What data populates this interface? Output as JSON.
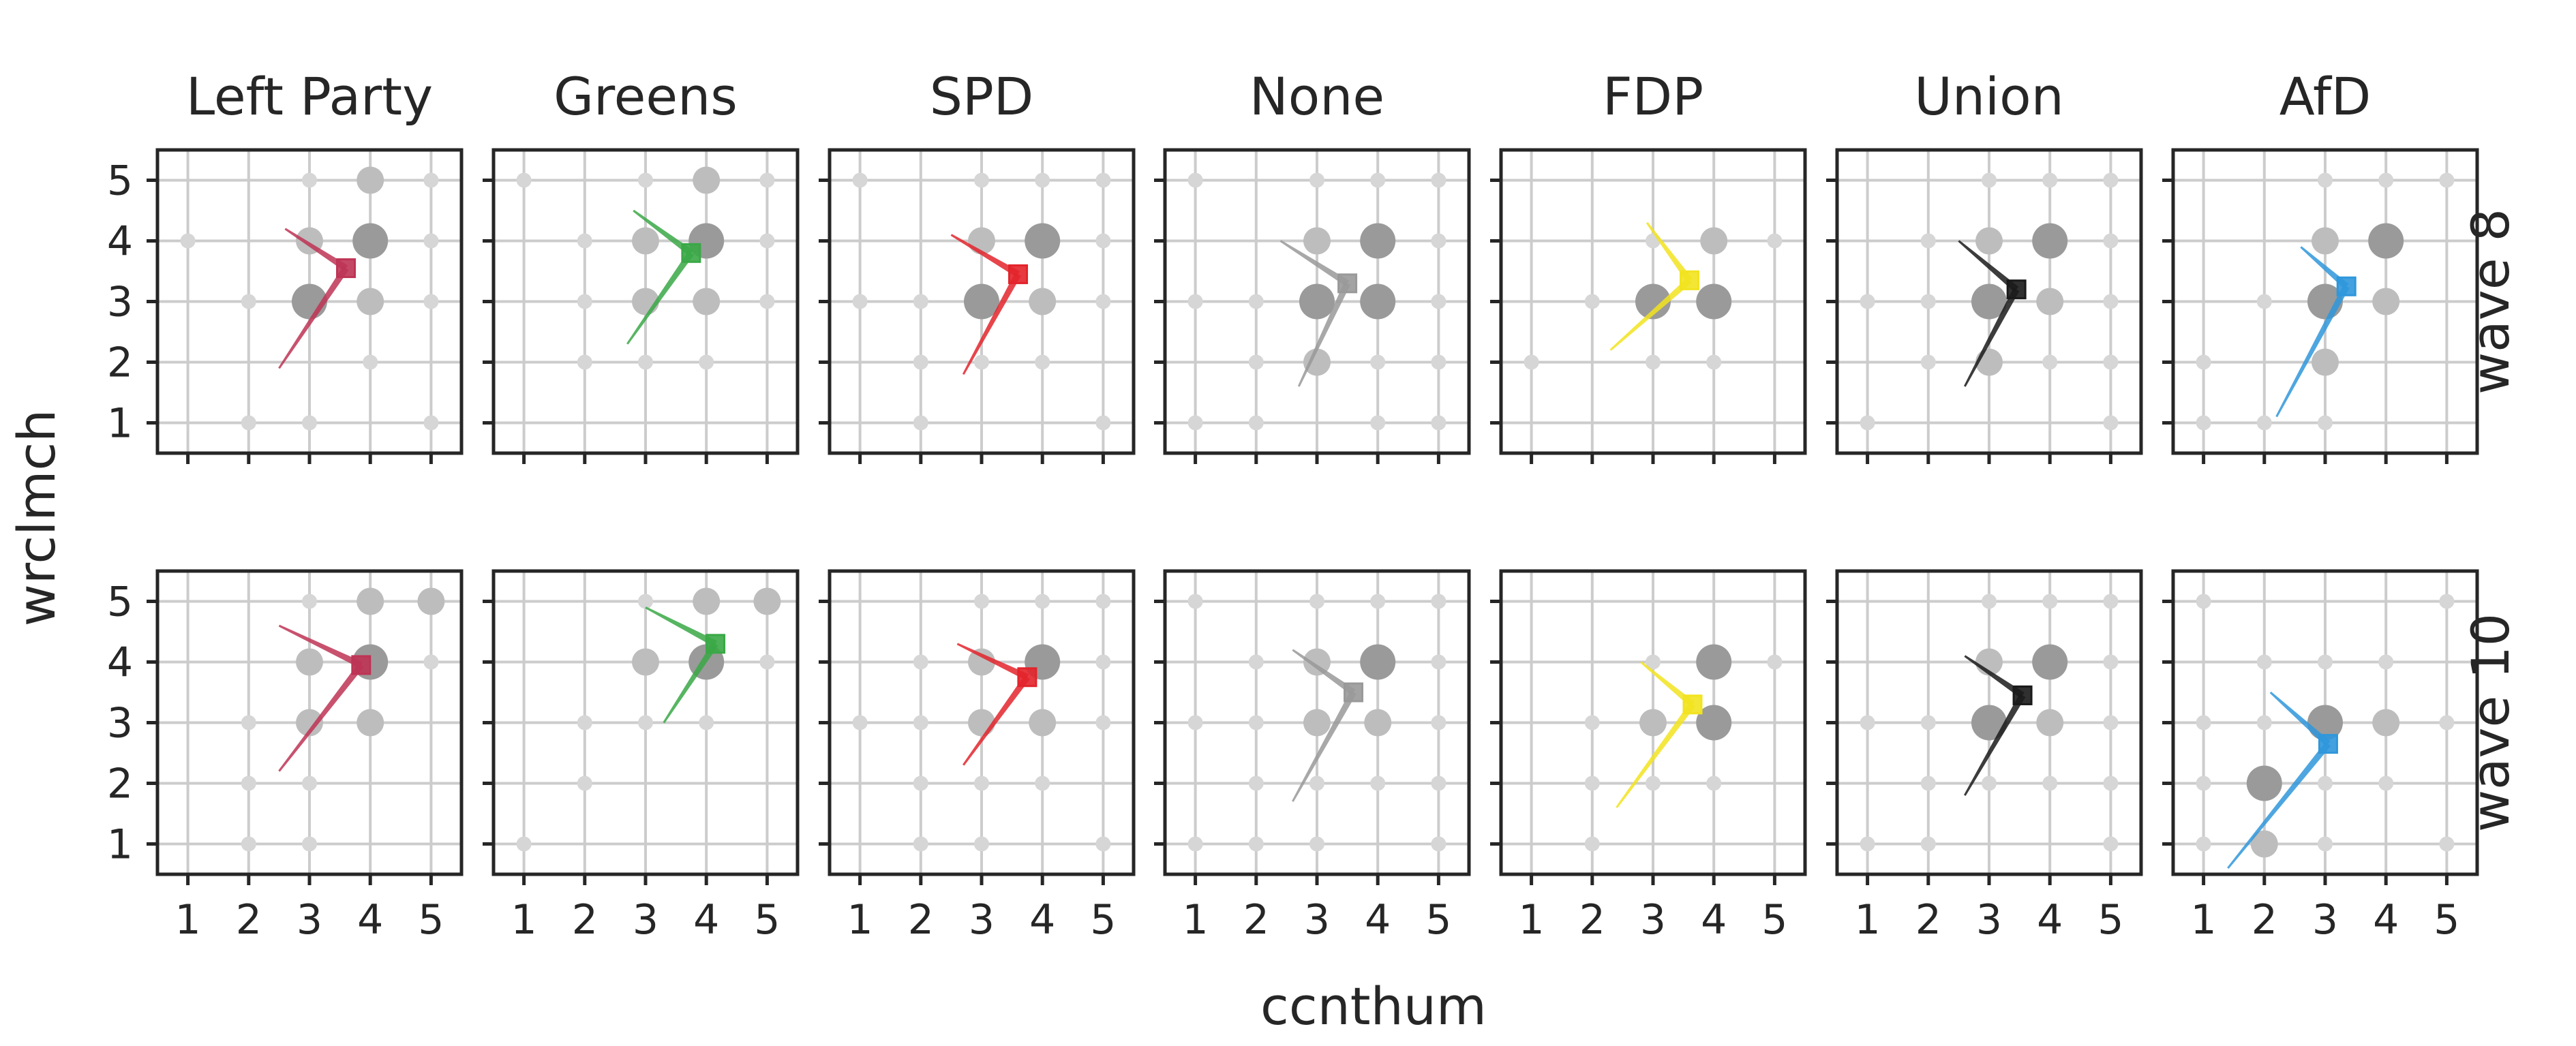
{
  "chart_data": {
    "type": "scatter",
    "xlabel": "ccnthum",
    "ylabel": "wrclmch",
    "xlim": [
      0.5,
      5.5
    ],
    "ylim": [
      0.5,
      5.5
    ],
    "xticks": [
      "1",
      "2",
      "3",
      "4",
      "5"
    ],
    "yticks": [
      "1",
      "2",
      "3",
      "4",
      "5"
    ],
    "grid": true,
    "columns": [
      "Left Party",
      "Greens",
      "SPD",
      "None",
      "FDP",
      "Union",
      "AfD"
    ],
    "rows": [
      "wave 8",
      "wave 10"
    ],
    "colors": {
      "Left Party": "#be3455",
      "Greens": "#3aa846",
      "SPD": "#e3242b",
      "None": "#999999",
      "FDP": "#f2e31f",
      "Union": "#1a1a1a",
      "AfD": "#2f97db"
    },
    "point_size_levels": [
      "small",
      "medium",
      "large"
    ],
    "panels": [
      {
        "row": "wave 8",
        "column": "Left Party",
        "points": [
          [
            1,
            4,
            1
          ],
          [
            2,
            1,
            1
          ],
          [
            2,
            3,
            1
          ],
          [
            3,
            1,
            1
          ],
          [
            3,
            4,
            2
          ],
          [
            3,
            5,
            1
          ],
          [
            3,
            3,
            3
          ],
          [
            4,
            2,
            1
          ],
          [
            4,
            3,
            2
          ],
          [
            4,
            4,
            3
          ],
          [
            4,
            5,
            2
          ],
          [
            5,
            1,
            1
          ],
          [
            5,
            3,
            1
          ],
          [
            5,
            4,
            1
          ],
          [
            5,
            5,
            1
          ]
        ],
        "mean": [
          3.6,
          3.55
        ],
        "arrow1_tip": [
          2.6,
          4.2
        ],
        "arrow2_tip": [
          2.5,
          1.9
        ]
      },
      {
        "row": "wave 8",
        "column": "Greens",
        "points": [
          [
            1,
            5,
            1
          ],
          [
            2,
            2,
            1
          ],
          [
            2,
            3,
            1
          ],
          [
            2,
            4,
            1
          ],
          [
            3,
            2,
            1
          ],
          [
            3,
            3,
            2
          ],
          [
            3,
            4,
            2
          ],
          [
            3,
            5,
            1
          ],
          [
            4,
            2,
            1
          ],
          [
            4,
            3,
            2
          ],
          [
            4,
            4,
            3
          ],
          [
            4,
            5,
            2
          ],
          [
            5,
            3,
            1
          ],
          [
            5,
            4,
            1
          ],
          [
            5,
            5,
            1
          ]
        ],
        "mean": [
          3.75,
          3.8
        ],
        "arrow1_tip": [
          2.8,
          4.5
        ],
        "arrow2_tip": [
          2.7,
          2.3
        ]
      },
      {
        "row": "wave 8",
        "column": "SPD",
        "points": [
          [
            1,
            3,
            1
          ],
          [
            1,
            5,
            1
          ],
          [
            2,
            1,
            1
          ],
          [
            2,
            2,
            1
          ],
          [
            2,
            3,
            1
          ],
          [
            3,
            2,
            1
          ],
          [
            3,
            3,
            3
          ],
          [
            3,
            4,
            2
          ],
          [
            3,
            5,
            1
          ],
          [
            4,
            2,
            1
          ],
          [
            4,
            3,
            2
          ],
          [
            4,
            4,
            3
          ],
          [
            4,
            5,
            1
          ],
          [
            5,
            1,
            1
          ],
          [
            5,
            3,
            1
          ],
          [
            5,
            4,
            1
          ],
          [
            5,
            5,
            1
          ]
        ],
        "mean": [
          3.6,
          3.45
        ],
        "arrow1_tip": [
          2.5,
          4.1
        ],
        "arrow2_tip": [
          2.7,
          1.8
        ]
      },
      {
        "row": "wave 8",
        "column": "None",
        "points": [
          [
            1,
            1,
            1
          ],
          [
            1,
            3,
            1
          ],
          [
            1,
            5,
            1
          ],
          [
            2,
            1,
            1
          ],
          [
            2,
            2,
            1
          ],
          [
            2,
            3,
            1
          ],
          [
            3,
            2,
            2
          ],
          [
            3,
            3,
            3
          ],
          [
            3,
            4,
            2
          ],
          [
            3,
            5,
            1
          ],
          [
            4,
            1,
            1
          ],
          [
            4,
            2,
            1
          ],
          [
            4,
            3,
            3
          ],
          [
            4,
            4,
            3
          ],
          [
            4,
            5,
            1
          ],
          [
            5,
            1,
            1
          ],
          [
            5,
            2,
            1
          ],
          [
            5,
            3,
            1
          ],
          [
            5,
            4,
            1
          ],
          [
            5,
            5,
            1
          ]
        ],
        "mean": [
          3.5,
          3.3
        ],
        "arrow1_tip": [
          2.4,
          4.0
        ],
        "arrow2_tip": [
          2.7,
          1.6
        ]
      },
      {
        "row": "wave 8",
        "column": "FDP",
        "points": [
          [
            1,
            2,
            1
          ],
          [
            2,
            3,
            1
          ],
          [
            3,
            2,
            1
          ],
          [
            3,
            3,
            3
          ],
          [
            3,
            4,
            1
          ],
          [
            4,
            2,
            1
          ],
          [
            4,
            3,
            3
          ],
          [
            4,
            4,
            2
          ],
          [
            5,
            4,
            1
          ]
        ],
        "mean": [
          3.6,
          3.35
        ],
        "arrow1_tip": [
          2.9,
          4.3
        ],
        "arrow2_tip": [
          2.3,
          2.2
        ]
      },
      {
        "row": "wave 8",
        "column": "Union",
        "points": [
          [
            1,
            1,
            1
          ],
          [
            1,
            3,
            1
          ],
          [
            2,
            2,
            1
          ],
          [
            2,
            3,
            1
          ],
          [
            2,
            4,
            1
          ],
          [
            3,
            2,
            2
          ],
          [
            3,
            3,
            3
          ],
          [
            3,
            4,
            2
          ],
          [
            3,
            5,
            1
          ],
          [
            4,
            2,
            1
          ],
          [
            4,
            3,
            2
          ],
          [
            4,
            4,
            3
          ],
          [
            4,
            5,
            1
          ],
          [
            5,
            1,
            1
          ],
          [
            5,
            2,
            1
          ],
          [
            5,
            3,
            1
          ],
          [
            5,
            4,
            1
          ],
          [
            5,
            5,
            1
          ]
        ],
        "mean": [
          3.45,
          3.2
        ],
        "arrow1_tip": [
          2.5,
          4.0
        ],
        "arrow2_tip": [
          2.6,
          1.6
        ]
      },
      {
        "row": "wave 8",
        "column": "AfD",
        "points": [
          [
            1,
            1,
            1
          ],
          [
            1,
            2,
            1
          ],
          [
            2,
            1,
            1
          ],
          [
            2,
            3,
            1
          ],
          [
            3,
            1,
            1
          ],
          [
            3,
            2,
            2
          ],
          [
            3,
            3,
            3
          ],
          [
            3,
            4,
            2
          ],
          [
            3,
            5,
            1
          ],
          [
            4,
            3,
            2
          ],
          [
            4,
            4,
            3
          ],
          [
            4,
            5,
            1
          ],
          [
            5,
            5,
            1
          ]
        ],
        "mean": [
          3.35,
          3.25
        ],
        "arrow1_tip": [
          2.6,
          3.9
        ],
        "arrow2_tip": [
          2.2,
          1.1
        ]
      },
      {
        "row": "wave 10",
        "column": "Left Party",
        "points": [
          [
            2,
            1,
            1
          ],
          [
            2,
            2,
            1
          ],
          [
            2,
            3,
            1
          ],
          [
            3,
            1,
            1
          ],
          [
            3,
            2,
            1
          ],
          [
            3,
            3,
            2
          ],
          [
            3,
            4,
            2
          ],
          [
            3,
            5,
            1
          ],
          [
            4,
            3,
            2
          ],
          [
            4,
            4,
            3
          ],
          [
            4,
            5,
            2
          ],
          [
            5,
            4,
            1
          ],
          [
            5,
            5,
            2
          ]
        ],
        "mean": [
          3.85,
          3.95
        ],
        "arrow1_tip": [
          2.5,
          4.6
        ],
        "arrow2_tip": [
          2.5,
          2.2
        ]
      },
      {
        "row": "wave 10",
        "column": "Greens",
        "points": [
          [
            1,
            1,
            1
          ],
          [
            2,
            2,
            1
          ],
          [
            2,
            3,
            1
          ],
          [
            3,
            3,
            1
          ],
          [
            3,
            4,
            2
          ],
          [
            3,
            5,
            1
          ],
          [
            4,
            3,
            1
          ],
          [
            4,
            4,
            3
          ],
          [
            4,
            5,
            2
          ],
          [
            5,
            4,
            1
          ],
          [
            5,
            5,
            2
          ]
        ],
        "mean": [
          4.15,
          4.3
        ],
        "arrow1_tip": [
          3.0,
          4.9
        ],
        "arrow2_tip": [
          3.3,
          3.0
        ]
      },
      {
        "row": "wave 10",
        "column": "SPD",
        "points": [
          [
            1,
            3,
            1
          ],
          [
            2,
            1,
            1
          ],
          [
            2,
            2,
            1
          ],
          [
            2,
            3,
            1
          ],
          [
            2,
            4,
            1
          ],
          [
            3,
            1,
            1
          ],
          [
            3,
            2,
            1
          ],
          [
            3,
            3,
            2
          ],
          [
            3,
            4,
            2
          ],
          [
            3,
            5,
            1
          ],
          [
            4,
            2,
            1
          ],
          [
            4,
            3,
            2
          ],
          [
            4,
            4,
            3
          ],
          [
            4,
            5,
            1
          ],
          [
            5,
            1,
            1
          ],
          [
            5,
            3,
            1
          ],
          [
            5,
            4,
            1
          ],
          [
            5,
            5,
            1
          ]
        ],
        "mean": [
          3.75,
          3.75
        ],
        "arrow1_tip": [
          2.6,
          4.3
        ],
        "arrow2_tip": [
          2.7,
          2.3
        ]
      },
      {
        "row": "wave 10",
        "column": "None",
        "points": [
          [
            1,
            1,
            1
          ],
          [
            1,
            3,
            1
          ],
          [
            1,
            5,
            1
          ],
          [
            2,
            1,
            1
          ],
          [
            2,
            2,
            1
          ],
          [
            2,
            3,
            1
          ],
          [
            2,
            4,
            1
          ],
          [
            3,
            1,
            1
          ],
          [
            3,
            2,
            1
          ],
          [
            3,
            3,
            2
          ],
          [
            3,
            4,
            2
          ],
          [
            3,
            5,
            1
          ],
          [
            4,
            2,
            1
          ],
          [
            4,
            3,
            2
          ],
          [
            4,
            4,
            3
          ],
          [
            4,
            5,
            1
          ],
          [
            5,
            1,
            1
          ],
          [
            5,
            2,
            1
          ],
          [
            5,
            3,
            1
          ],
          [
            5,
            4,
            1
          ],
          [
            5,
            5,
            1
          ]
        ],
        "mean": [
          3.6,
          3.5
        ],
        "arrow1_tip": [
          2.6,
          4.2
        ],
        "arrow2_tip": [
          2.6,
          1.7
        ]
      },
      {
        "row": "wave 10",
        "column": "FDP",
        "points": [
          [
            2,
            1,
            1
          ],
          [
            2,
            2,
            1
          ],
          [
            2,
            3,
            1
          ],
          [
            3,
            2,
            1
          ],
          [
            3,
            3,
            2
          ],
          [
            3,
            4,
            1
          ],
          [
            4,
            2,
            1
          ],
          [
            4,
            3,
            3
          ],
          [
            4,
            4,
            3
          ],
          [
            5,
            4,
            1
          ]
        ],
        "mean": [
          3.65,
          3.3
        ],
        "arrow1_tip": [
          2.8,
          4.0
        ],
        "arrow2_tip": [
          2.4,
          1.6
        ]
      },
      {
        "row": "wave 10",
        "column": "Union",
        "points": [
          [
            1,
            1,
            1
          ],
          [
            1,
            3,
            1
          ],
          [
            2,
            1,
            1
          ],
          [
            2,
            2,
            1
          ],
          [
            2,
            3,
            1
          ],
          [
            3,
            2,
            1
          ],
          [
            3,
            3,
            3
          ],
          [
            3,
            4,
            2
          ],
          [
            3,
            5,
            1
          ],
          [
            4,
            2,
            1
          ],
          [
            4,
            3,
            2
          ],
          [
            4,
            4,
            3
          ],
          [
            4,
            5,
            1
          ],
          [
            5,
            1,
            1
          ],
          [
            5,
            2,
            1
          ],
          [
            5,
            3,
            1
          ],
          [
            5,
            4,
            1
          ],
          [
            5,
            5,
            1
          ]
        ],
        "mean": [
          3.55,
          3.45
        ],
        "arrow1_tip": [
          2.6,
          4.1
        ],
        "arrow2_tip": [
          2.6,
          1.8
        ]
      },
      {
        "row": "wave 10",
        "column": "AfD",
        "points": [
          [
            1,
            1,
            1
          ],
          [
            1,
            2,
            1
          ],
          [
            1,
            3,
            1
          ],
          [
            1,
            5,
            1
          ],
          [
            2,
            1,
            2
          ],
          [
            2,
            2,
            3
          ],
          [
            2,
            3,
            1
          ],
          [
            2,
            4,
            1
          ],
          [
            3,
            1,
            1
          ],
          [
            3,
            2,
            1
          ],
          [
            3,
            3,
            3
          ],
          [
            3,
            4,
            1
          ],
          [
            4,
            2,
            1
          ],
          [
            4,
            3,
            2
          ],
          [
            4,
            4,
            1
          ],
          [
            5,
            1,
            1
          ],
          [
            5,
            3,
            1
          ],
          [
            5,
            5,
            1
          ]
        ],
        "mean": [
          3.05,
          2.65
        ],
        "arrow1_tip": [
          2.1,
          3.5
        ],
        "arrow2_tip": [
          1.4,
          0.6
        ]
      }
    ]
  }
}
